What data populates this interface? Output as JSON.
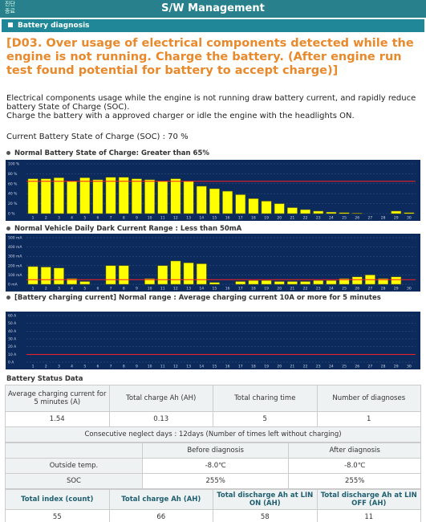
{
  "header": {
    "button_line1": "진단",
    "button_line2": "종료",
    "title": "S/W Management"
  },
  "section": "Battery diagnosis",
  "alert": "[D03. Over usage of electrical components detected while the engine is not running. Charge the battery. (After engine run test found potential for battery to accept charge)]",
  "description": [
    "Electrical components usage while the engine is not running draw battery current, and rapidly reduce battery State of Charge (SOC).",
    "Charge the battery with a approved charger or idle the engine with the headlights ON."
  ],
  "soc_text": "Current Battery State of Charge (SOC) : 70 %",
  "chart_data": [
    {
      "type": "bar",
      "title": "Normal Battery State of Charge: Greater than 65%",
      "categories": [
        "1",
        "2",
        "3",
        "4",
        "5",
        "6",
        "7",
        "8",
        "9",
        "10",
        "11",
        "12",
        "13",
        "14",
        "15",
        "16",
        "17",
        "18",
        "19",
        "20",
        "21",
        "22",
        "23",
        "24",
        "25",
        "26",
        "27",
        "28",
        "29",
        "30"
      ],
      "values": [
        70,
        70,
        72,
        65,
        72,
        68,
        73,
        73,
        70,
        68,
        65,
        70,
        65,
        55,
        50,
        45,
        38,
        30,
        25,
        20,
        12,
        8,
        5,
        3,
        2,
        1,
        0,
        0,
        5,
        2
      ],
      "color": "#ffff00",
      "threshold": 65,
      "threshold_color": "#ff2020",
      "grid": true,
      "ylim": [
        0,
        100
      ],
      "yticks": [
        {
          "value": 0,
          "label": "0 %"
        },
        {
          "value": 20,
          "label": "20 %"
        },
        {
          "value": 40,
          "label": "40 %"
        },
        {
          "value": 60,
          "label": "60 %"
        },
        {
          "value": 80,
          "label": "80 %"
        },
        {
          "value": 100,
          "label": "100 %"
        }
      ]
    },
    {
      "type": "bar",
      "title": "Normal Vehicle Daily Dark Current Range : Less than 50mA",
      "categories": [
        "1",
        "2",
        "3",
        "4",
        "5",
        "6",
        "7",
        "8",
        "9",
        "10",
        "11",
        "12",
        "13",
        "14",
        "15",
        "16",
        "17",
        "18",
        "19",
        "20",
        "21",
        "22",
        "23",
        "24",
        "25",
        "26",
        "27",
        "28",
        "29",
        "30"
      ],
      "values": [
        190,
        185,
        175,
        60,
        30,
        0,
        200,
        200,
        0,
        60,
        200,
        250,
        230,
        220,
        20,
        0,
        30,
        40,
        40,
        30,
        30,
        30,
        40,
        40,
        60,
        80,
        100,
        60,
        80,
        0
      ],
      "color": "#ffff00",
      "threshold": 50,
      "threshold_color": "#ff2020",
      "grid": true,
      "ylim": [
        0,
        500
      ],
      "yticks": [
        {
          "value": 0,
          "label": "0 mA"
        },
        {
          "value": 100,
          "label": "100 mA"
        },
        {
          "value": 200,
          "label": "200 mA"
        },
        {
          "value": 300,
          "label": "300 mA"
        },
        {
          "value": 400,
          "label": "400 mA"
        },
        {
          "value": 500,
          "label": "500 mA"
        }
      ]
    },
    {
      "type": "bar",
      "title": "[Battery charging current] Normal range : Average charging current 10A or more for 5 minutes",
      "categories": [
        "1",
        "2",
        "3",
        "4",
        "5",
        "6",
        "7",
        "8",
        "9",
        "10",
        "11",
        "12",
        "13",
        "14",
        "15",
        "16",
        "17",
        "18",
        "19",
        "20",
        "21",
        "22",
        "23",
        "24",
        "25",
        "26",
        "27",
        "28",
        "29",
        "30"
      ],
      "values": [
        0,
        0,
        0,
        0,
        0,
        0,
        0,
        0,
        0,
        0,
        0,
        0,
        0,
        0,
        0,
        0,
        0,
        0,
        0,
        0,
        0,
        0,
        0,
        0,
        0,
        0,
        0,
        0,
        0,
        0
      ],
      "color": "#ffff00",
      "threshold": 10,
      "threshold_color": "#ff2020",
      "grid": true,
      "ylim": [
        0,
        60
      ],
      "yticks": [
        {
          "value": 0,
          "label": "0 A"
        },
        {
          "value": 10,
          "label": "10 A"
        },
        {
          "value": 20,
          "label": "20 A"
        },
        {
          "value": 30,
          "label": "30 A"
        },
        {
          "value": 40,
          "label": "40 A"
        },
        {
          "value": 50,
          "label": "50 A"
        },
        {
          "value": 60,
          "label": "60 A"
        }
      ]
    }
  ],
  "status_title": "Battery Status Data",
  "status_table": {
    "header": [
      "Average charging current for 5 minutes (A)",
      "Total charge Ah (AH)",
      "Total charing time",
      "Number of diagnoses"
    ],
    "row": [
      "1.54",
      "0.13",
      "5",
      "1"
    ]
  },
  "neglect_text": "Consecutive neglect days : 12days (Number of times left without charging)",
  "comparison": {
    "header": [
      "Before diagnosis",
      "After diagnosis"
    ],
    "rows": [
      [
        "Outside temp.",
        "-8.0℃",
        "-8.0℃"
      ],
      [
        "SOC",
        "255%",
        "255%"
      ]
    ]
  },
  "totals": {
    "header": [
      "Total index (count)",
      "Total charge Ah (AH)",
      "Total discharge Ah at LIN ON (AH)",
      "Total discharge Ah at LIN OFF (AH)"
    ],
    "row": [
      "55",
      "66",
      "58",
      "11"
    ]
  }
}
